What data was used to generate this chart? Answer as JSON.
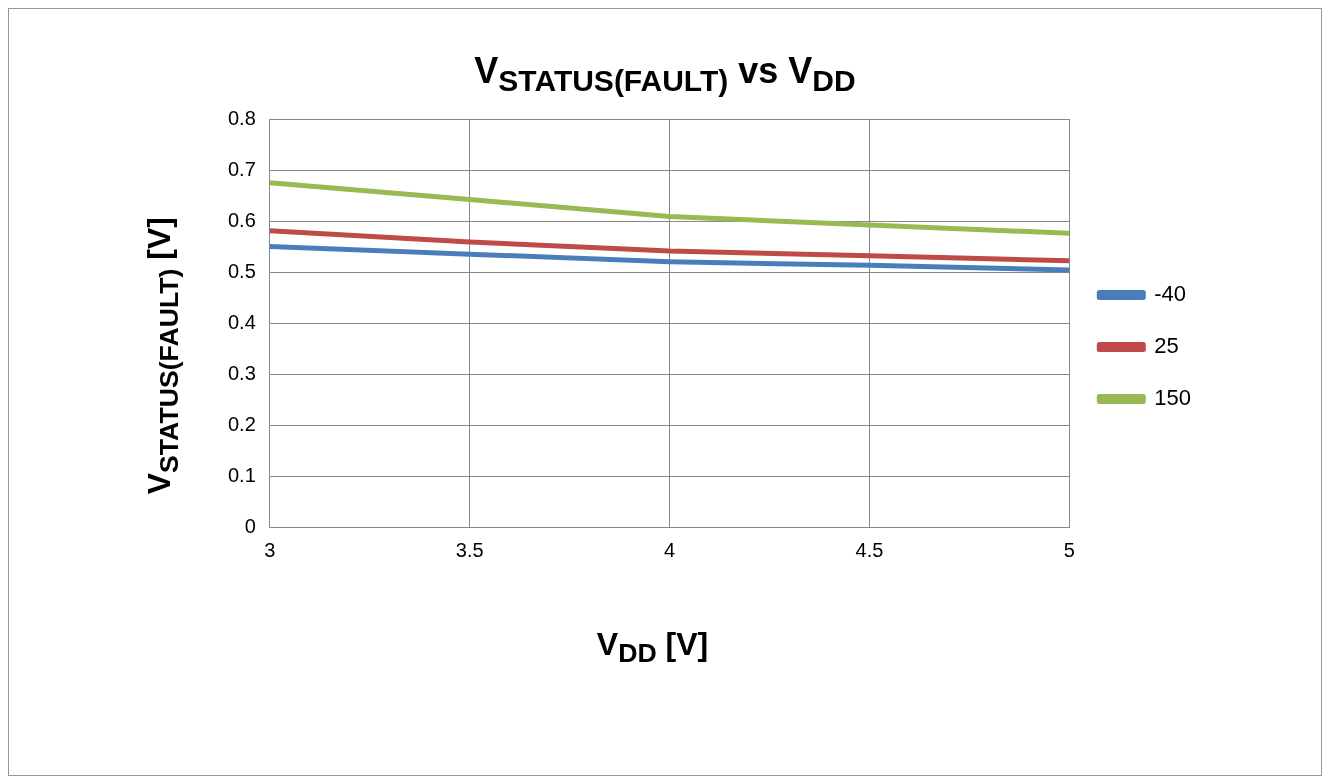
{
  "chart_data": {
    "type": "line",
    "title": "V$_{STATUS(FAULT)}$ vs V$_{DD}$",
    "xlabel": "V$_{DD}$  [V]",
    "ylabel": "V$_{STATUS(FAULT)}$ [V]",
    "x": [
      3,
      3.5,
      4,
      4.5,
      5
    ],
    "series": [
      {
        "name": "-40",
        "color": "#4a7ebb",
        "values": [
          0.55,
          0.535,
          0.52,
          0.513,
          0.504
        ]
      },
      {
        "name": "25",
        "color": "#be4b48",
        "values": [
          0.581,
          0.559,
          0.541,
          0.532,
          0.522
        ]
      },
      {
        "name": "150",
        "color": "#98b954",
        "values": [
          0.675,
          0.642,
          0.609,
          0.592,
          0.576
        ]
      }
    ],
    "xlim": [
      3,
      5
    ],
    "xticks": [
      3,
      3.5,
      4,
      4.5,
      5
    ],
    "ylim": [
      0,
      0.8
    ],
    "yticks": [
      0,
      0.1,
      0.2,
      0.3,
      0.4,
      0.5,
      0.6,
      0.7,
      0.8
    ],
    "grid": true,
    "legend": "right"
  }
}
